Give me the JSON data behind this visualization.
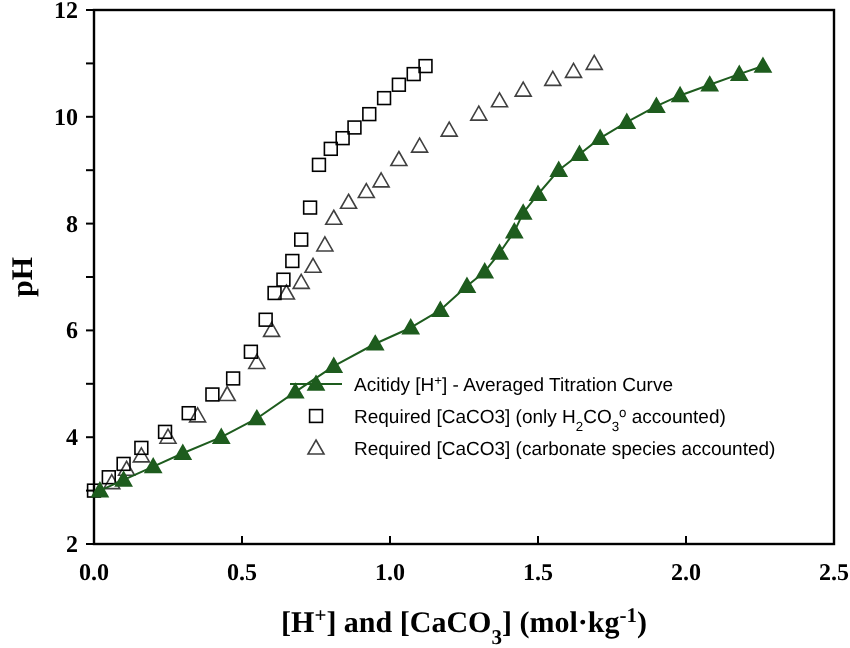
{
  "chart_data": {
    "type": "line",
    "xlabel": "[H$^{+}$] and [CaCO$_{3}$] (mol·kg$^{-1}$)",
    "ylabel": "pH",
    "xlim": [
      0,
      2.5
    ],
    "xticks": [
      {
        "value": 0,
        "label": "0.0"
      },
      {
        "value": 0.5,
        "label": "0.5"
      },
      {
        "value": 1,
        "label": "1.0"
      },
      {
        "value": 1.5,
        "label": "1.5"
      },
      {
        "value": 2,
        "label": "2.0"
      },
      {
        "value": 2.5,
        "label": "2.5"
      }
    ],
    "ylim": [
      2,
      12
    ],
    "yticks": [
      2,
      {
        "value": 3,
        "label": null
      },
      4,
      {
        "value": 5,
        "label": null
      },
      6,
      {
        "value": 7,
        "label": null
      },
      8,
      {
        "value": 9,
        "label": null
      },
      10,
      {
        "value": 11,
        "label": null
      },
      12
    ],
    "grid": false,
    "legend": "bottom right",
    "series": [
      {
        "name": "Acitidy [H$^{+}$] - Averaged Titration Curve",
        "marker": "triangle",
        "line_style": "solid",
        "color": "#1e5c1e",
        "x": [
          0.02,
          0.1,
          0.2,
          0.3,
          0.43,
          0.55,
          0.68,
          0.81,
          0.95,
          1.07,
          1.17,
          1.26,
          1.32,
          1.37,
          1.42,
          1.45,
          1.5,
          1.57,
          1.64,
          1.71,
          1.8,
          1.9,
          1.98,
          2.08,
          2.18,
          2.26
        ],
        "values": [
          3.0,
          3.2,
          3.45,
          3.7,
          4.0,
          4.35,
          4.85,
          5.33,
          5.75,
          6.05,
          6.38,
          6.83,
          7.1,
          7.45,
          7.85,
          8.2,
          8.55,
          9.0,
          9.3,
          9.6,
          9.9,
          10.2,
          10.4,
          10.6,
          10.8,
          10.95
        ]
      },
      {
        "name": "Required  [CaCO3] (only H$_{2}$CO$_{3}$$^{o}$ accounted)",
        "type": "scatter",
        "marker": "square",
        "color": "#000000",
        "x": [
          0.0,
          0.05,
          0.1,
          0.16,
          0.24,
          0.32,
          0.4,
          0.47,
          0.53,
          0.58,
          0.61,
          0.64,
          0.67,
          0.7,
          0.73,
          0.76,
          0.8,
          0.84,
          0.88,
          0.93,
          0.98,
          1.03,
          1.08,
          1.12
        ],
        "values": [
          3.0,
          3.25,
          3.5,
          3.8,
          4.1,
          4.45,
          4.8,
          5.1,
          5.6,
          6.2,
          6.7,
          6.95,
          7.3,
          7.7,
          8.3,
          9.1,
          9.4,
          9.6,
          9.8,
          10.05,
          10.35,
          10.6,
          10.8,
          10.95
        ]
      },
      {
        "name": "Required  [CaCO3] (carbonate species accounted)",
        "type": "scatter",
        "marker": "triangle",
        "color": "#404040",
        "x": [
          0.06,
          0.11,
          0.16,
          0.25,
          0.35,
          0.45,
          0.55,
          0.6,
          0.65,
          0.7,
          0.74,
          0.78,
          0.81,
          0.86,
          0.92,
          0.97,
          1.03,
          1.1,
          1.2,
          1.3,
          1.37,
          1.45,
          1.55,
          1.62,
          1.69
        ],
        "values": [
          3.15,
          3.4,
          3.65,
          4.0,
          4.4,
          4.8,
          5.4,
          6.0,
          6.7,
          6.9,
          7.2,
          7.6,
          8.1,
          8.4,
          8.6,
          8.8,
          9.2,
          9.45,
          9.75,
          10.05,
          10.3,
          10.5,
          10.7,
          10.85,
          11.0
        ]
      }
    ]
  }
}
